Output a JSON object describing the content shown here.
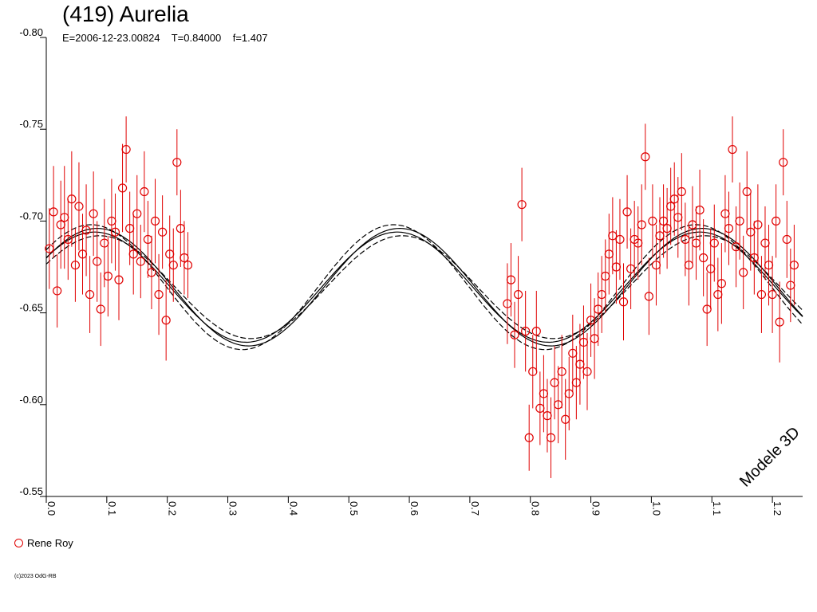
{
  "chart_data": {
    "type": "scatter",
    "title": "(419) Aurelia",
    "subtitle": "E=2006-12-23.00824    T=0.84000    f=1.407",
    "xlim": [
      0.0,
      1.25
    ],
    "ylim": [
      -0.8,
      -0.55
    ],
    "y_inverted": true,
    "grid": false,
    "y_ticks": [
      "-0.80",
      "-0.75",
      "-0.70",
      "-0.65",
      "-0.60",
      "-0.55"
    ],
    "x_ticks": [
      "0.0",
      "0.1",
      "0.2",
      "0.3",
      "0.4",
      "0.5",
      "0.6",
      "0.7",
      "0.8",
      "0.9",
      "1.0",
      "1.1",
      "1.2"
    ],
    "annotation": "Modele 3D",
    "series": [
      {
        "name": "Rene Roy",
        "color": "#e00000",
        "marker": "open-circle",
        "error_bars": true,
        "phase_range": [
          [
            0.0,
            0.24
          ],
          [
            0.76,
            1.24
          ]
        ],
        "x": [
          0.005,
          0.012,
          0.018,
          0.024,
          0.03,
          0.036,
          0.042,
          0.048,
          0.054,
          0.06,
          0.066,
          0.072,
          0.078,
          0.084,
          0.09,
          0.096,
          0.102,
          0.108,
          0.114,
          0.12,
          0.126,
          0.132,
          0.138,
          0.144,
          0.15,
          0.156,
          0.162,
          0.168,
          0.174,
          0.18,
          0.186,
          0.192,
          0.198,
          0.204,
          0.21,
          0.216,
          0.222,
          0.228,
          0.234,
          0.762,
          0.768,
          0.774,
          0.78,
          0.786,
          0.792,
          0.798,
          0.804,
          0.81,
          0.816,
          0.822,
          0.828,
          0.834,
          0.84,
          0.846,
          0.852,
          0.858,
          0.864,
          0.87,
          0.876,
          0.882,
          0.888,
          0.894,
          0.9,
          0.906,
          0.912,
          0.918,
          0.924,
          0.93,
          0.936,
          0.942,
          0.948,
          0.954,
          0.96,
          0.966,
          0.972,
          0.978,
          0.984,
          0.99,
          0.996,
          1.002,
          1.008,
          1.014,
          1.02,
          1.026,
          1.032,
          1.038,
          1.044,
          1.05,
          1.056,
          1.062,
          1.068,
          1.074,
          1.08,
          1.086,
          1.092,
          1.098,
          1.104,
          1.11,
          1.116,
          1.122,
          1.128,
          1.134,
          1.14,
          1.146,
          1.152,
          1.158,
          1.164,
          1.17,
          1.176,
          1.182,
          1.188,
          1.194,
          1.2,
          1.206,
          1.212,
          1.218,
          1.224,
          1.23,
          1.236
        ],
        "y": [
          -0.685,
          -0.705,
          -0.662,
          -0.698,
          -0.702,
          -0.69,
          -0.712,
          -0.676,
          -0.708,
          -0.682,
          -0.695,
          -0.66,
          -0.704,
          -0.678,
          -0.652,
          -0.688,
          -0.67,
          -0.7,
          -0.694,
          -0.668,
          -0.718,
          -0.739,
          -0.696,
          -0.682,
          -0.704,
          -0.678,
          -0.716,
          -0.69,
          -0.672,
          -0.7,
          -0.66,
          -0.694,
          -0.646,
          -0.682,
          -0.676,
          -0.732,
          -0.696,
          -0.68,
          -0.676,
          -0.655,
          -0.668,
          -0.638,
          -0.66,
          -0.709,
          -0.64,
          -0.582,
          -0.618,
          -0.64,
          -0.598,
          -0.606,
          -0.594,
          -0.582,
          -0.612,
          -0.6,
          -0.618,
          -0.592,
          -0.606,
          -0.628,
          -0.612,
          -0.622,
          -0.634,
          -0.618,
          -0.646,
          -0.636,
          -0.652,
          -0.66,
          -0.67,
          -0.682,
          -0.692,
          -0.675,
          -0.69,
          -0.656,
          -0.705,
          -0.674,
          -0.69,
          -0.688,
          -0.698,
          -0.735,
          -0.659,
          -0.7,
          -0.676,
          -0.692,
          -0.7,
          -0.696,
          -0.708,
          -0.712,
          -0.702,
          -0.716,
          -0.69,
          -0.676,
          -0.698,
          -0.688,
          -0.706,
          -0.68,
          -0.652,
          -0.674,
          -0.688,
          -0.66,
          -0.666,
          -0.704,
          -0.696,
          -0.739,
          -0.686,
          -0.7,
          -0.672,
          -0.716,
          -0.694,
          -0.68,
          -0.698,
          -0.66,
          -0.688,
          -0.676,
          -0.66,
          -0.7,
          -0.645,
          -0.732,
          -0.69,
          -0.665,
          -0.676
        ],
        "yerr": [
          0.022,
          0.025,
          0.02,
          0.024,
          0.028,
          0.022,
          0.026,
          0.02,
          0.024,
          0.022,
          0.025,
          0.021,
          0.023,
          0.022,
          0.02,
          0.024,
          0.022,
          0.023,
          0.021,
          0.022,
          0.024,
          0.018,
          0.02,
          0.022,
          0.021,
          0.02,
          0.022,
          0.021,
          0.02,
          0.023,
          0.022,
          0.02,
          0.022,
          0.021,
          0.02,
          0.018,
          0.021,
          0.02,
          0.018,
          0.022,
          0.02,
          0.018,
          0.021,
          0.02,
          0.022,
          0.018,
          0.02,
          0.022,
          0.02,
          0.021,
          0.02,
          0.022,
          0.02,
          0.021,
          0.02,
          0.022,
          0.02,
          0.021,
          0.02,
          0.022,
          0.02,
          0.021,
          0.02,
          0.022,
          0.02,
          0.021,
          0.02,
          0.022,
          0.021,
          0.02,
          0.022,
          0.021,
          0.02,
          0.022,
          0.021,
          0.02,
          0.022,
          0.018,
          0.021,
          0.02,
          0.022,
          0.021,
          0.02,
          0.022,
          0.021,
          0.02,
          0.022,
          0.021,
          0.02,
          0.022,
          0.021,
          0.02,
          0.022,
          0.021,
          0.02,
          0.022,
          0.021,
          0.02,
          0.022,
          0.021,
          0.02,
          0.018,
          0.022,
          0.021,
          0.02,
          0.022,
          0.021,
          0.02,
          0.022,
          0.021,
          0.02,
          0.022,
          0.021,
          0.02,
          0.022,
          0.018,
          0.021,
          0.02,
          0.022
        ]
      }
    ],
    "model_curves": {
      "style": [
        "solid",
        "solid",
        "dashed",
        "dashed"
      ],
      "period_phase": 0.5,
      "mean": -0.664,
      "amplitude": [
        0.03,
        0.032,
        0.034,
        0.028
      ],
      "phase_shift": [
        0.0,
        0.004,
        -0.006,
        0.008
      ],
      "max_phase": 0.08
    }
  },
  "legend": {
    "label": "Rene Roy"
  },
  "footer": {
    "copyright": "(c)2023 OdG-RB"
  }
}
